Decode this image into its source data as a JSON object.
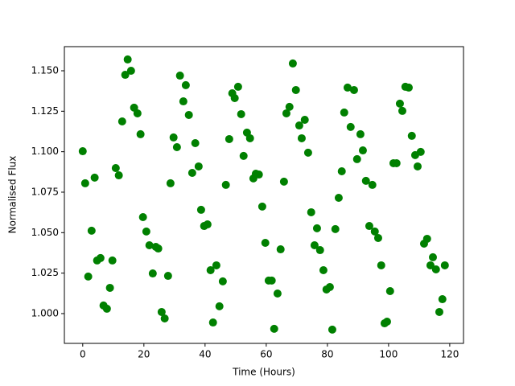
{
  "chart_data": {
    "type": "scatter",
    "x_label": "Time (Hours)",
    "y_label": "Normalised Flux",
    "series": [
      {
        "color": "#008000",
        "x": [
          0,
          0.8,
          1.8,
          2.9,
          3.9,
          4.7,
          5.8,
          6.8,
          7.9,
          8.9,
          9.7,
          10.8,
          11.8,
          12.9,
          13.9,
          14.7,
          15.8,
          16.8,
          17.9,
          18.9,
          19.7,
          20.8,
          21.8,
          22.9,
          23.9,
          24.7,
          25.8,
          26.8,
          27.9,
          28.7,
          29.7,
          30.8,
          31.8,
          32.9,
          33.7,
          34.7,
          35.8,
          36.8,
          37.9,
          38.7,
          39.7,
          40.8,
          41.8,
          42.6,
          43.7,
          44.7,
          45.8,
          46.8,
          47.9,
          48.9,
          49.7,
          50.8,
          51.8,
          52.6,
          53.7,
          54.7,
          55.8,
          56.6,
          57.6,
          58.7,
          59.7,
          60.8,
          61.8,
          62.6,
          63.7,
          64.7,
          65.8,
          66.6,
          67.6,
          68.7,
          69.7,
          70.8,
          71.6,
          72.6,
          73.7,
          74.7,
          75.8,
          76.6,
          77.6,
          78.7,
          79.7,
          80.8,
          81.6,
          82.6,
          83.7,
          84.7,
          85.5,
          86.6,
          87.6,
          88.7,
          89.7,
          90.8,
          91.6,
          92.6,
          93.7,
          94.7,
          95.5,
          96.6,
          97.6,
          98.7,
          99.5,
          100.5,
          101.6,
          102.6,
          103.7,
          104.5,
          105.5,
          106.6,
          107.6,
          108.7,
          109.5,
          110.5,
          111.6,
          112.6,
          113.7,
          114.5,
          115.5,
          116.6,
          117.6,
          118.4
        ],
        "values": [
          1.1003,
          1.0805,
          1.0229,
          1.0512,
          1.084,
          1.0328,
          1.0343,
          1.005,
          1.003,
          1.0159,
          1.0328,
          1.0899,
          1.0854,
          1.1187,
          1.1475,
          1.157,
          1.15,
          1.1272,
          1.1237,
          1.1108,
          1.0596,
          1.0507,
          1.0422,
          1.0248,
          1.0412,
          1.0402,
          1.001,
          0.997,
          1.0233,
          1.0805,
          1.1088,
          1.1028,
          1.147,
          1.1311,
          1.1411,
          1.1227,
          1.0869,
          1.1053,
          1.0909,
          1.0641,
          1.0541,
          1.0551,
          1.0268,
          0.9945,
          1.0298,
          1.0045,
          1.0199,
          1.0795,
          1.1078,
          1.1361,
          1.1331,
          1.1401,
          1.1232,
          1.0974,
          1.1118,
          1.1083,
          1.0835,
          1.0864,
          1.0859,
          1.0661,
          1.0437,
          1.0204,
          1.0204,
          0.9906,
          1.0124,
          1.0397,
          1.0815,
          1.1237,
          1.1277,
          1.1545,
          1.1381,
          1.1162,
          1.1083,
          1.1197,
          1.0994,
          1.0626,
          1.0422,
          1.0527,
          1.0392,
          1.0268,
          1.0149,
          1.0164,
          0.9901,
          1.0522,
          1.0715,
          1.0879,
          1.1242,
          1.1396,
          1.1153,
          1.1381,
          1.0954,
          1.1108,
          1.1008,
          1.082,
          1.0541,
          1.0795,
          1.0507,
          1.0467,
          1.0298,
          0.994,
          0.995,
          1.0139,
          1.0929,
          1.0929,
          1.1297,
          1.1252,
          1.1401,
          1.1396,
          1.1098,
          1.0979,
          1.0909,
          1.0999,
          1.0432,
          1.0462,
          1.0298,
          1.0348,
          1.0273,
          1.001,
          1.0089,
          1.0298
        ]
      }
    ],
    "xlim": [
      -6,
      124.5
    ],
    "xticks": [
      0,
      20,
      40,
      60,
      80,
      100,
      120
    ],
    "ylim": [
      0.9816,
      1.1649
    ],
    "yticks": [
      {
        "value": 1,
        "label": "1.000"
      },
      1.025,
      {
        "value": 1.05,
        "label": "1.050"
      },
      1.075,
      {
        "value": 1.1,
        "label": "1.100"
      },
      1.125,
      {
        "value": 1.15,
        "label": "1.150"
      }
    ],
    "grid": false
  }
}
